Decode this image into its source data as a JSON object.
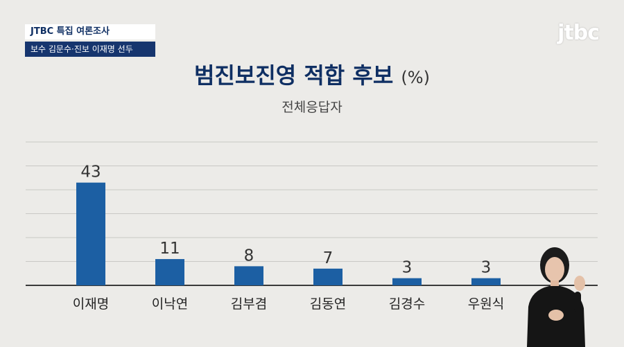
{
  "header": {
    "tag_top": "JTBC 특집 여론조사",
    "tag_bottom": "보수 김문수·진보 이재명 선두",
    "logo": "jtbc"
  },
  "chart_data": {
    "type": "bar",
    "title": "범진보진영 적합 후보",
    "unit": "(%)",
    "subtitle": "전체응답자",
    "categories": [
      "이재명",
      "이낙연",
      "김부겸",
      "김동연",
      "김경수",
      "우원식"
    ],
    "values": [
      43,
      11,
      8,
      7,
      3,
      3
    ],
    "ylim": [
      0,
      60
    ],
    "grid": true,
    "legend": "none",
    "bar_color": "#1c5fa3",
    "label_color": "#333333"
  },
  "overlay": {
    "icon": "sign-language-interpreter-icon"
  }
}
